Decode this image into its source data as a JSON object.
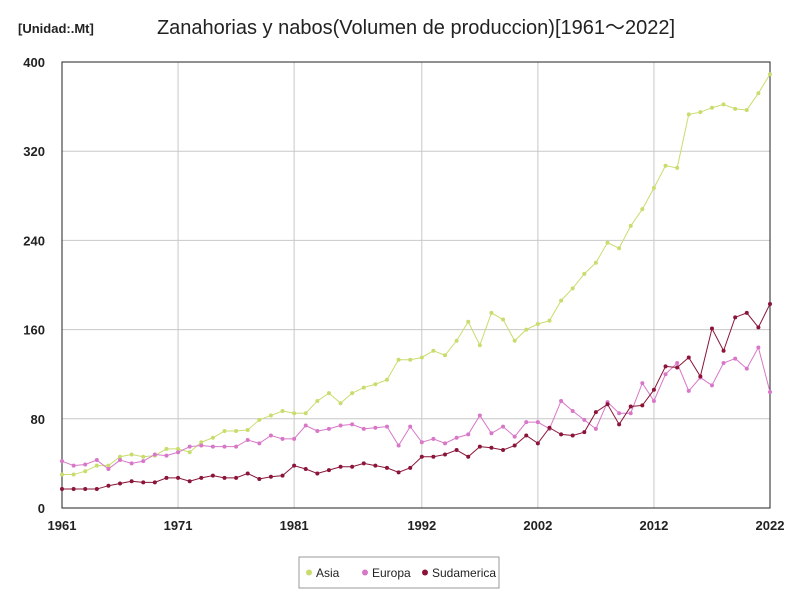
{
  "chart_data": {
    "type": "line",
    "title": "Zanahorias y nabos(Volumen de produccion)[1961～2022]",
    "unit_label": "[Unidad:.Mt]",
    "xlabel": "",
    "ylabel": "",
    "xlim": [
      1961,
      2022
    ],
    "ylim": [
      0,
      400
    ],
    "x_ticks": [
      1961,
      1971,
      1981,
      1992,
      2002,
      2012,
      2022
    ],
    "y_ticks": [
      0,
      80,
      160,
      240,
      320,
      400
    ],
    "grid": true,
    "legend_position": "bottom",
    "x": [
      1961,
      1962,
      1963,
      1964,
      1965,
      1966,
      1967,
      1968,
      1969,
      1970,
      1971,
      1972,
      1973,
      1974,
      1975,
      1976,
      1977,
      1978,
      1979,
      1980,
      1981,
      1982,
      1983,
      1984,
      1985,
      1986,
      1987,
      1988,
      1989,
      1990,
      1991,
      1992,
      1993,
      1994,
      1995,
      1996,
      1997,
      1998,
      1999,
      2000,
      2001,
      2002,
      2003,
      2004,
      2005,
      2006,
      2007,
      2008,
      2009,
      2010,
      2011,
      2012,
      2013,
      2014,
      2015,
      2016,
      2017,
      2018,
      2019,
      2020,
      2021,
      2022
    ],
    "series": [
      {
        "name": "Asia",
        "color": "#c8dd6e",
        "values": [
          30,
          30,
          33,
          38,
          38,
          46,
          48,
          46,
          47,
          53,
          53,
          50,
          59,
          63,
          69,
          69,
          70,
          79,
          83,
          87,
          85,
          85,
          96,
          103,
          94,
          103,
          108,
          111,
          115,
          133,
          133,
          135,
          141,
          137,
          150,
          167,
          146,
          175,
          169,
          150,
          160,
          165,
          168,
          186,
          197,
          210,
          220,
          238,
          233,
          253,
          268,
          287,
          307,
          305,
          353,
          355,
          359,
          362,
          358,
          357,
          372,
          389
        ]
      },
      {
        "name": "Europa",
        "color": "#d877c8",
        "values": [
          42,
          38,
          39,
          43,
          35,
          43,
          40,
          42,
          48,
          47,
          50,
          55,
          56,
          55,
          55,
          55,
          61,
          58,
          65,
          62,
          62,
          74,
          69,
          71,
          74,
          75,
          71,
          72,
          73,
          56,
          73,
          59,
          62,
          58,
          63,
          66,
          83,
          67,
          73,
          64,
          77,
          77,
          71,
          96,
          87,
          79,
          71,
          95,
          85,
          85,
          112,
          96,
          120,
          130,
          105,
          117,
          110,
          130,
          134,
          125,
          144,
          104
        ]
      },
      {
        "name": "Sudamerica",
        "color": "#8a1538",
        "values": [
          17,
          17,
          17,
          17,
          20,
          22,
          24,
          23,
          23,
          27,
          27,
          24,
          27,
          29,
          27,
          27,
          31,
          26,
          28,
          29,
          38,
          35,
          31,
          34,
          37,
          37,
          40,
          38,
          36,
          32,
          36,
          46,
          46,
          48,
          52,
          46,
          55,
          54,
          52,
          56,
          65,
          58,
          72,
          66,
          65,
          68,
          86,
          93,
          75,
          91,
          92,
          106,
          127,
          126,
          135,
          118,
          161,
          141,
          171,
          175,
          162,
          183
        ]
      }
    ]
  }
}
